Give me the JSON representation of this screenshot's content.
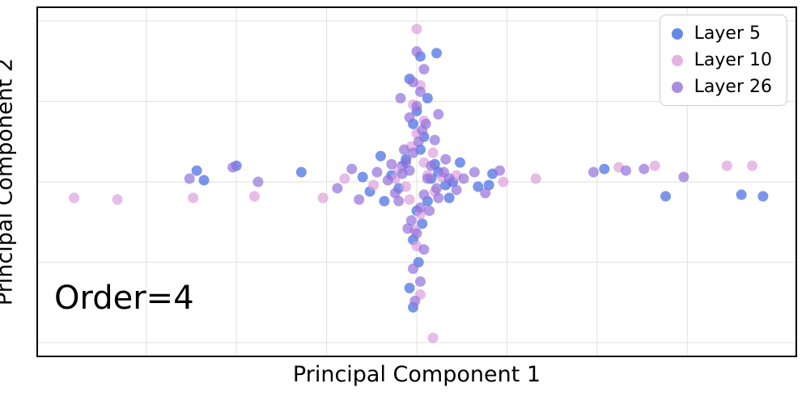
{
  "annotation": "Order=4",
  "axes": {
    "xlabel": "Principal Component 1",
    "ylabel": "Principal Component 2"
  },
  "colors": {
    "frame": "#000000",
    "grid": "#e5e5e5",
    "background": "#ffffff"
  },
  "chart_data": {
    "type": "scatter",
    "title": "",
    "xlabel": "Principal Component 1",
    "ylabel": "Principal Component 2",
    "xlim": [
      -10.5,
      10.5
    ],
    "ylim": [
      -5.4,
      5.4
    ],
    "grid": true,
    "grid_x": [
      -7.5,
      -5,
      -2.5,
      0,
      2.5,
      5,
      7.5
    ],
    "grid_y": [
      -5,
      -2.5,
      0,
      2.5,
      5
    ],
    "legend_position": "upper right",
    "annotation": "Order=4",
    "marker_opacity": 0.7,
    "marker_radius": 6.5,
    "series": [
      {
        "name": "Layer 5",
        "color": "#4169E1",
        "points": [
          [
            -6.1,
            0.35
          ],
          [
            -5.9,
            0.05
          ],
          [
            -5.0,
            0.5
          ],
          [
            -3.2,
            0.3
          ],
          [
            -1.5,
            0.15
          ],
          [
            -1.3,
            -0.3
          ],
          [
            1.7,
            -0.15
          ],
          [
            2.0,
            -0.1
          ],
          [
            2.1,
            0.25
          ],
          [
            5.2,
            0.4
          ],
          [
            6.9,
            -0.45
          ],
          [
            9.0,
            -0.4
          ],
          [
            9.6,
            -0.45
          ],
          [
            0.1,
            3.9
          ],
          [
            0.55,
            4.0
          ],
          [
            -0.2,
            3.2
          ],
          [
            0.3,
            2.6
          ],
          [
            0.0,
            2.2
          ],
          [
            -0.1,
            1.8
          ],
          [
            0.2,
            1.4
          ],
          [
            0.1,
            1.0
          ],
          [
            -0.3,
            0.7
          ],
          [
            0.3,
            -0.6
          ],
          [
            0.0,
            -0.9
          ],
          [
            0.15,
            -1.3
          ],
          [
            -0.1,
            -1.8
          ],
          [
            0.05,
            -2.5
          ],
          [
            -0.2,
            -3.3
          ],
          [
            -0.1,
            -3.9
          ],
          [
            0.4,
            0.1
          ],
          [
            -0.5,
            -0.2
          ],
          [
            0.6,
            0.3
          ],
          [
            0.8,
            -0.1
          ],
          [
            -0.7,
            0.2
          ],
          [
            1.0,
            0.0
          ],
          [
            0.5,
            0.55
          ],
          [
            -0.4,
            0.5
          ],
          [
            -1.0,
            0.8
          ],
          [
            1.2,
            0.6
          ],
          [
            0.9,
            -0.5
          ],
          [
            -0.9,
            -0.6
          ]
        ]
      },
      {
        "name": "Layer 10",
        "color": "#DDA0DD",
        "points": [
          [
            -9.5,
            -0.5
          ],
          [
            -8.3,
            -0.55
          ],
          [
            -6.2,
            -0.5
          ],
          [
            -4.5,
            -0.45
          ],
          [
            -2.6,
            -0.5
          ],
          [
            -2.0,
            0.1
          ],
          [
            2.4,
            0.0
          ],
          [
            3.3,
            0.1
          ],
          [
            5.6,
            0.45
          ],
          [
            6.6,
            0.5
          ],
          [
            8.6,
            0.5
          ],
          [
            9.3,
            0.5
          ],
          [
            0.0,
            4.75
          ],
          [
            0.1,
            3.0
          ],
          [
            -0.1,
            2.4
          ],
          [
            0.2,
            1.9
          ],
          [
            0.0,
            1.5
          ],
          [
            -0.15,
            1.1
          ],
          [
            0.1,
            -1.0
          ],
          [
            -0.05,
            -1.5
          ],
          [
            0.0,
            -2.0
          ],
          [
            0.1,
            -3.5
          ],
          [
            0.45,
            -4.85
          ],
          [
            0.3,
            0.2
          ],
          [
            -0.3,
            -0.15
          ],
          [
            0.5,
            -0.3
          ],
          [
            -0.6,
            0.1
          ],
          [
            0.7,
            0.15
          ],
          [
            0.2,
            0.6
          ],
          [
            -0.2,
            -0.55
          ],
          [
            1.1,
            0.2
          ],
          [
            -1.2,
            -0.1
          ],
          [
            0.45,
            0.9
          ],
          [
            -0.5,
            0.4
          ]
        ]
      },
      {
        "name": "Layer 26",
        "color": "#9370DB",
        "points": [
          [
            -6.3,
            0.1
          ],
          [
            -5.1,
            0.45
          ],
          [
            -4.4,
            0.0
          ],
          [
            -2.2,
            -0.2
          ],
          [
            -1.8,
            0.4
          ],
          [
            -1.6,
            -0.55
          ],
          [
            1.6,
            0.3
          ],
          [
            1.9,
            -0.35
          ],
          [
            2.3,
            0.35
          ],
          [
            4.9,
            0.3
          ],
          [
            5.8,
            0.35
          ],
          [
            6.3,
            0.4
          ],
          [
            7.4,
            0.15
          ],
          [
            0.0,
            4.05
          ],
          [
            0.2,
            3.5
          ],
          [
            -0.1,
            3.1
          ],
          [
            0.1,
            2.8
          ],
          [
            0.0,
            2.35
          ],
          [
            -0.2,
            2.0
          ],
          [
            0.15,
            1.6
          ],
          [
            0.05,
            1.25
          ],
          [
            -0.1,
            0.9
          ],
          [
            0.1,
            -0.8
          ],
          [
            -0.15,
            -1.2
          ],
          [
            0.0,
            -1.6
          ],
          [
            0.2,
            -2.1
          ],
          [
            -0.1,
            -2.7
          ],
          [
            0.1,
            -3.1
          ],
          [
            -0.05,
            -3.7
          ],
          [
            0.3,
            0.1
          ],
          [
            -0.4,
            0.25
          ],
          [
            0.55,
            -0.2
          ],
          [
            -0.6,
            -0.35
          ],
          [
            0.75,
            0.3
          ],
          [
            0.9,
            0.1
          ],
          [
            -0.8,
            0.05
          ],
          [
            0.4,
            0.5
          ],
          [
            -0.3,
            0.6
          ],
          [
            0.6,
            -0.5
          ],
          [
            -0.5,
            -0.6
          ],
          [
            1.1,
            -0.25
          ],
          [
            -1.1,
            0.3
          ],
          [
            1.3,
            0.1
          ],
          [
            0.2,
            -0.4
          ],
          [
            -0.2,
            0.35
          ],
          [
            0.35,
            -0.9
          ],
          [
            -0.35,
            1.0
          ],
          [
            0.5,
            1.3
          ],
          [
            -0.25,
            -1.45
          ],
          [
            0.8,
            0.7
          ],
          [
            -0.7,
            0.55
          ],
          [
            0.25,
            1.8
          ],
          [
            0.6,
            2.1
          ],
          [
            -0.45,
            2.6
          ]
        ]
      }
    ]
  }
}
